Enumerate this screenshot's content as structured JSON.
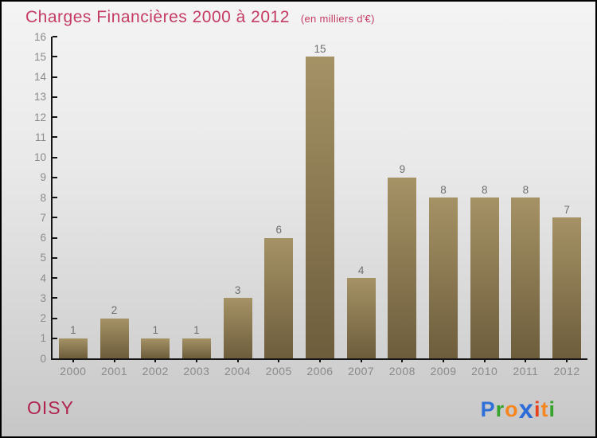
{
  "title": {
    "text": "Charges Financières 2000 à 2012",
    "subtitle": "(en milliers d'€)",
    "color": "#c43b63"
  },
  "chart_data": {
    "type": "bar",
    "categories": [
      "2000",
      "2001",
      "2002",
      "2003",
      "2004",
      "2005",
      "2006",
      "2007",
      "2008",
      "2009",
      "2010",
      "2011",
      "2012"
    ],
    "values": [
      1,
      2,
      1,
      1,
      3,
      6,
      15,
      4,
      9,
      8,
      8,
      8,
      7
    ],
    "title": "Charges Financières 2000 à 2012",
    "subtitle": "(en milliers d'€)",
    "xlabel": "",
    "ylabel": "",
    "ylim": [
      0,
      16
    ],
    "ytick_step": 1,
    "grid": false,
    "legend": "none",
    "value_labels_shown": true,
    "bar_color_top": "#a59265",
    "bar_color_bottom": "#6d5d3c",
    "value_label_color": "#6e6e6e",
    "tick_label_color": "#8a8a8a",
    "axis_color": "#151515"
  },
  "footer": {
    "place": "OISY",
    "place_color": "#b0234f",
    "logo": {
      "word": "Proxiti",
      "letters": [
        {
          "ch": "P",
          "color": "#2f6fd8"
        },
        {
          "ch": "r",
          "color": "#35a32c"
        },
        {
          "ch": "o",
          "color": "#f6861f"
        },
        {
          "ch": "x",
          "color": "#2b6cd8"
        },
        {
          "ch": "i",
          "color": "#e8401c"
        },
        {
          "ch": "t",
          "color": "#f6861f"
        },
        {
          "ch": "i",
          "color": "#35a32c"
        }
      ]
    }
  }
}
